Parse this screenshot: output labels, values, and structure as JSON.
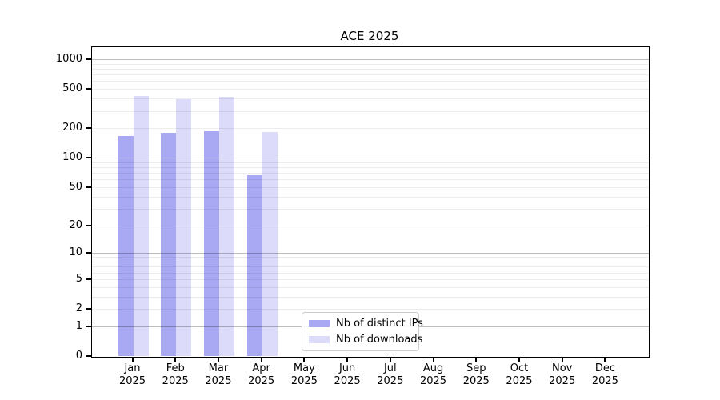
{
  "page": {
    "title": "ACE 2025"
  },
  "chart_data": {
    "type": "bar",
    "title": "ACE 2025",
    "x_tick_months": [
      "Jan",
      "Feb",
      "Mar",
      "Apr",
      "May",
      "Jun",
      "Jul",
      "Aug",
      "Sep",
      "Oct",
      "Nov",
      "Dec"
    ],
    "x_tick_year": "2025",
    "series": [
      {
        "name": "Nb of distinct IPs",
        "color": "#a9a9f3",
        "values": [
          167,
          178,
          186,
          66,
          null,
          null,
          null,
          null,
          null,
          null,
          null,
          null
        ]
      },
      {
        "name": "Nb of downloads",
        "color": "#dcdcfa",
        "values": [
          425,
          397,
          417,
          183,
          null,
          null,
          null,
          null,
          null,
          null,
          null,
          null
        ]
      }
    ],
    "y_axis": {
      "scale": "log10(1+value)",
      "ticks": [
        0,
        1,
        2,
        5,
        10,
        20,
        50,
        100,
        200,
        500,
        1000
      ],
      "range_top_value": 1330
    },
    "grid": {
      "major_lines": [
        1,
        10,
        100,
        1000
      ],
      "minor_lines": [
        2,
        3,
        4,
        5,
        6,
        7,
        8,
        9,
        20,
        30,
        40,
        50,
        60,
        70,
        80,
        90,
        200,
        300,
        400,
        500,
        600,
        700,
        800,
        900
      ]
    },
    "legend": {
      "items": [
        "Nb of distinct IPs",
        "Nb of downloads"
      ]
    }
  }
}
